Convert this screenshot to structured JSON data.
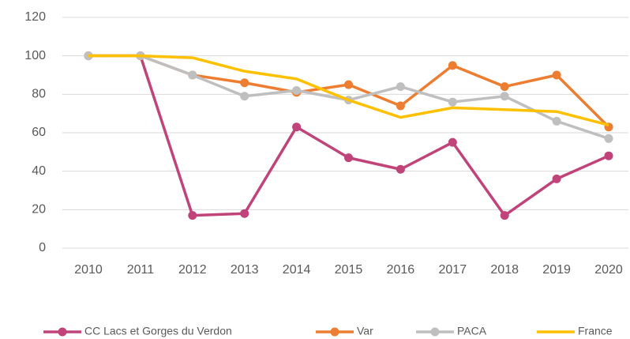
{
  "chart_data": {
    "type": "line",
    "categories": [
      "2010",
      "2011",
      "2012",
      "2013",
      "2014",
      "2015",
      "2016",
      "2017",
      "2018",
      "2019",
      "2020"
    ],
    "series": [
      {
        "name": "CC Lacs et Gorges du Verdon",
        "color": "#c0437a",
        "markers": true,
        "values": [
          100,
          100,
          17,
          18,
          63,
          47,
          41,
          55,
          17,
          36,
          48
        ]
      },
      {
        "name": "Var",
        "color": "#ed7d31",
        "markers": true,
        "values": [
          100,
          100,
          90,
          86,
          81,
          85,
          74,
          95,
          84,
          90,
          63
        ]
      },
      {
        "name": "PACA",
        "color": "#bfbfbf",
        "markers": true,
        "values": [
          100,
          100,
          90,
          79,
          82,
          77,
          84,
          76,
          79,
          66,
          57
        ]
      },
      {
        "name": "France",
        "color": "#ffc000",
        "markers": false,
        "values": [
          100,
          100,
          99,
          92,
          88,
          77,
          68,
          73,
          72,
          71,
          64
        ]
      }
    ],
    "ylim": [
      0,
      120
    ],
    "yticks": [
      0,
      20,
      40,
      60,
      80,
      100,
      120
    ],
    "grid": true,
    "legend": "bottom"
  }
}
